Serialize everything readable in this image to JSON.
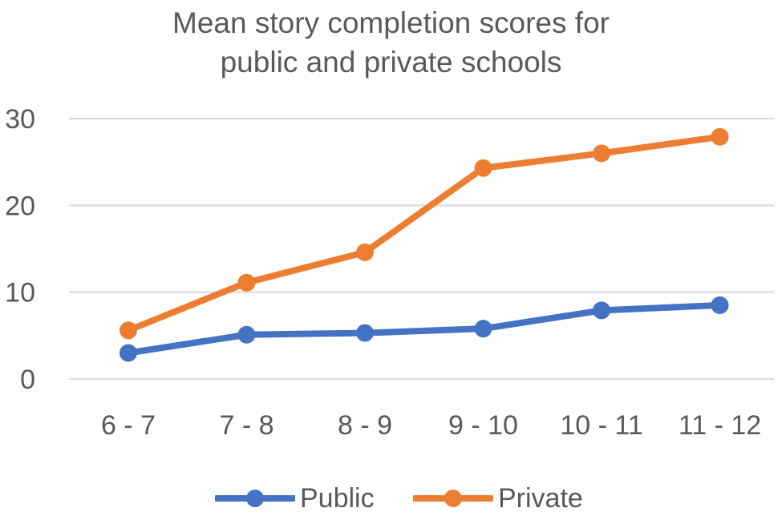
{
  "chart_data": {
    "type": "line",
    "title_lines": [
      "Mean story completion scores for",
      "public and private schools"
    ],
    "categories": [
      "6 - 7",
      "7 - 8",
      "8 - 9",
      "9 - 10",
      "10 - 11",
      "11 - 12"
    ],
    "series": [
      {
        "name": "Public",
        "color": "#4472C4",
        "values": [
          3.0,
          5.1,
          5.3,
          5.8,
          7.9,
          8.5
        ]
      },
      {
        "name": "Private",
        "color": "#ED7D31",
        "values": [
          5.6,
          11.1,
          14.6,
          24.3,
          26.0,
          27.9
        ]
      }
    ],
    "ylim": [
      0,
      30
    ],
    "yticks": [
      0,
      10,
      20,
      30
    ],
    "grid": true,
    "legend_position": "bottom",
    "marker": "circle"
  }
}
